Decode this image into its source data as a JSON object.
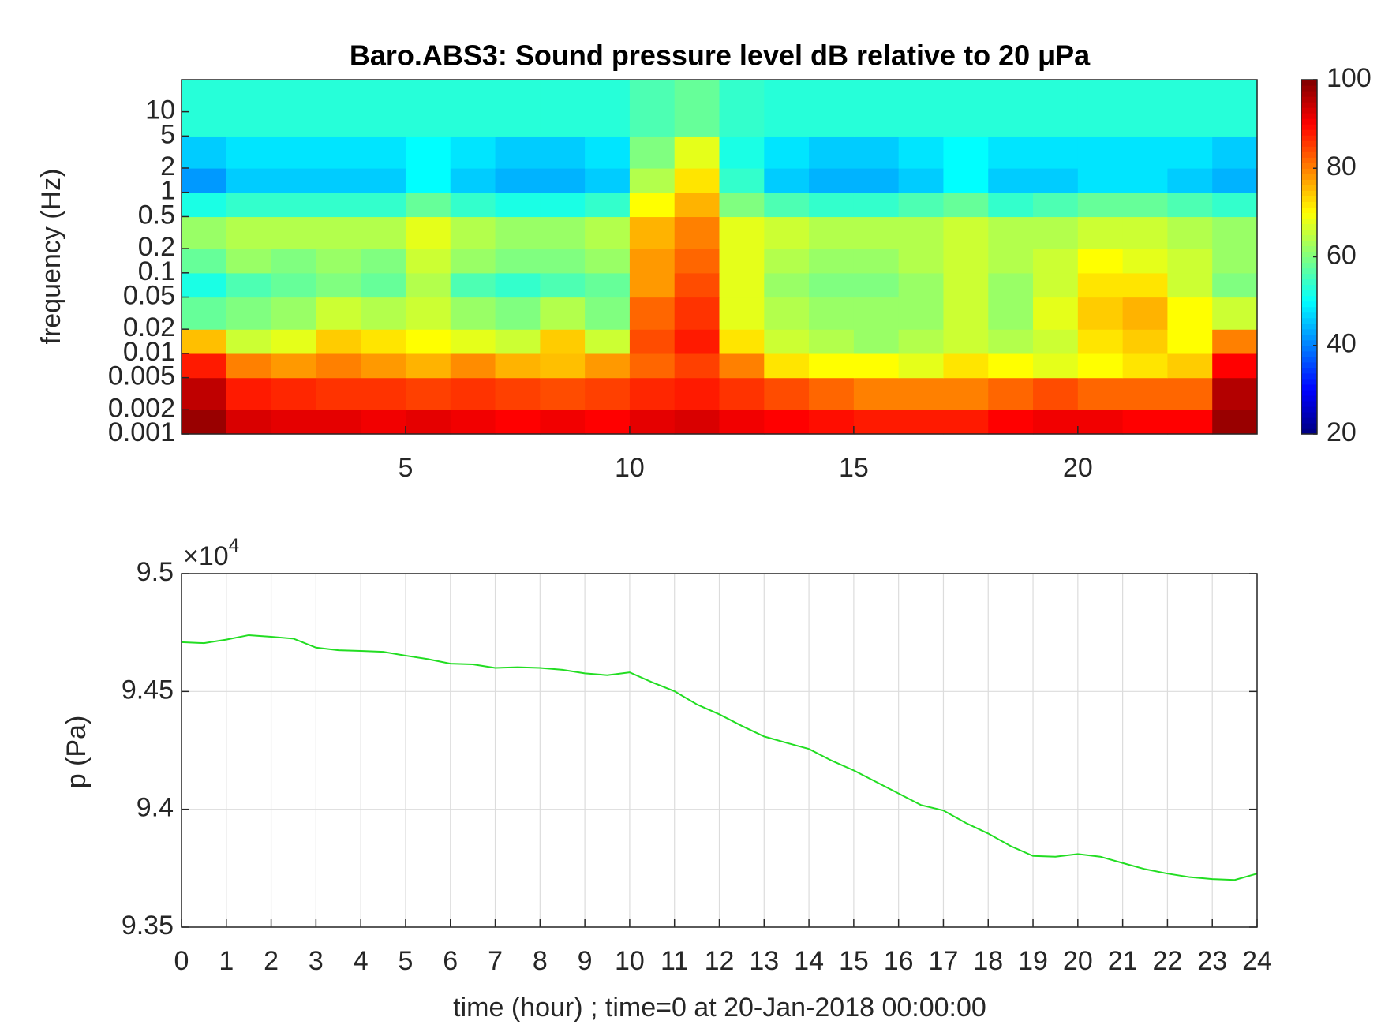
{
  "chart_data": [
    {
      "type": "heatmap",
      "title": "Baro.ABS3: Sound pressure level dB relative to 20 μPa",
      "ylabel": "frequency (Hz)",
      "x": [
        0,
        1,
        2,
        3,
        4,
        5,
        6,
        7,
        8,
        9,
        10,
        11,
        12,
        13,
        14,
        15,
        16,
        17,
        18,
        19,
        20,
        21,
        22,
        23,
        24
      ],
      "y": [
        0.001,
        0.002,
        0.005,
        0.01,
        0.02,
        0.05,
        0.1,
        0.2,
        0.5,
        1,
        2,
        5,
        25
      ],
      "z": [
        [
          98,
          93,
          92,
          92,
          91,
          92,
          91,
          90,
          91,
          90,
          92,
          93,
          91,
          90,
          89,
          88,
          88,
          88,
          90,
          91,
          91,
          90,
          90,
          98
        ],
        [
          95,
          88,
          87,
          86,
          86,
          85,
          86,
          85,
          84,
          85,
          87,
          88,
          86,
          84,
          82,
          80,
          80,
          80,
          82,
          84,
          82,
          82,
          82,
          96
        ],
        [
          88,
          80,
          78,
          80,
          78,
          76,
          79,
          76,
          75,
          78,
          82,
          85,
          80,
          72,
          70,
          70,
          68,
          72,
          70,
          68,
          70,
          72,
          74,
          90
        ],
        [
          75,
          66,
          68,
          74,
          72,
          70,
          68,
          66,
          74,
          66,
          84,
          88,
          72,
          66,
          64,
          62,
          64,
          66,
          64,
          66,
          72,
          74,
          70,
          80
        ],
        [
          58,
          60,
          62,
          66,
          64,
          66,
          62,
          60,
          64,
          60,
          82,
          86,
          68,
          64,
          62,
          62,
          62,
          66,
          62,
          68,
          74,
          76,
          70,
          66
        ],
        [
          52,
          56,
          58,
          60,
          58,
          64,
          56,
          54,
          56,
          58,
          78,
          84,
          68,
          62,
          60,
          60,
          62,
          66,
          62,
          66,
          72,
          72,
          66,
          60
        ],
        [
          58,
          62,
          60,
          62,
          60,
          66,
          62,
          60,
          60,
          62,
          78,
          82,
          68,
          64,
          62,
          62,
          64,
          66,
          64,
          66,
          70,
          68,
          66,
          62
        ],
        [
          62,
          64,
          64,
          64,
          64,
          68,
          64,
          62,
          62,
          64,
          76,
          80,
          68,
          66,
          64,
          64,
          64,
          66,
          64,
          64,
          66,
          66,
          64,
          62
        ],
        [
          52,
          54,
          54,
          54,
          54,
          58,
          54,
          52,
          52,
          54,
          70,
          76,
          60,
          56,
          54,
          54,
          56,
          58,
          54,
          56,
          58,
          58,
          56,
          54
        ],
        [
          42,
          46,
          46,
          46,
          46,
          50,
          46,
          44,
          44,
          46,
          64,
          72,
          54,
          46,
          44,
          44,
          46,
          50,
          46,
          46,
          48,
          48,
          46,
          44
        ],
        [
          46,
          48,
          48,
          48,
          48,
          50,
          48,
          46,
          46,
          48,
          60,
          68,
          52,
          48,
          46,
          46,
          48,
          50,
          48,
          48,
          48,
          48,
          48,
          46
        ],
        [
          53,
          53,
          53,
          53,
          53,
          53,
          53,
          53,
          53,
          53,
          56,
          58,
          54,
          53,
          53,
          53,
          53,
          53,
          53,
          53,
          53,
          53,
          53,
          53
        ]
      ],
      "xlim": [
        0,
        24
      ],
      "xticks": [
        5,
        10,
        15,
        20
      ],
      "ylim": [
        0.001,
        25
      ],
      "log_y": true,
      "yticks": [
        0.001,
        0.002,
        0.005,
        0.01,
        0.02,
        0.05,
        0.1,
        0.2,
        0.5,
        1,
        2,
        5,
        10
      ],
      "colormap": "jet",
      "clim": [
        20,
        100
      ],
      "cticks": [
        20,
        40,
        60,
        80,
        100
      ]
    },
    {
      "type": "line",
      "xlabel": "time (hour) ; time=0 at 20-Jan-2018 00:00:00",
      "ylabel": "p (Pa)",
      "y_multiplier": "×10",
      "y_exponent": "4",
      "color": "#22dd22",
      "x": [
        0,
        0.5,
        1,
        1.5,
        2,
        2.5,
        3,
        3.5,
        4,
        4.5,
        5,
        5.5,
        6,
        6.5,
        7,
        7.5,
        8,
        8.5,
        9,
        9.5,
        10,
        10.5,
        11,
        11.5,
        12,
        12.5,
        13,
        13.5,
        14,
        14.5,
        15,
        15.5,
        16,
        16.5,
        17,
        17.5,
        18,
        18.5,
        19,
        19.5,
        20,
        20.5,
        21,
        21.5,
        22,
        22.5,
        23,
        23.5,
        24
      ],
      "values": [
        94709,
        94705,
        94720,
        94739,
        94732,
        94724,
        94686,
        94675,
        94672,
        94668,
        94652,
        94637,
        94618,
        94615,
        94600,
        94603,
        94600,
        94592,
        94577,
        94569,
        94581,
        94539,
        94501,
        94445,
        94403,
        94354,
        94309,
        94282,
        94256,
        94207,
        94165,
        94116,
        94067,
        94018,
        93995,
        93942,
        93897,
        93844,
        93802,
        93799,
        93810,
        93799,
        93772,
        93746,
        93727,
        93712,
        93704,
        93700,
        93727
      ],
      "xlim": [
        0,
        24
      ],
      "xticks": [
        0,
        1,
        2,
        3,
        4,
        5,
        6,
        7,
        8,
        9,
        10,
        11,
        12,
        13,
        14,
        15,
        16,
        17,
        18,
        19,
        20,
        21,
        22,
        23,
        24
      ],
      "ylim": [
        93500,
        95000
      ],
      "yticks": [
        {
          "value": 93500,
          "label": "9.35"
        },
        {
          "value": 94000,
          "label": "9.4"
        },
        {
          "value": 94500,
          "label": "9.45"
        },
        {
          "value": 95000,
          "label": "9.5"
        }
      ],
      "grid": true
    }
  ]
}
